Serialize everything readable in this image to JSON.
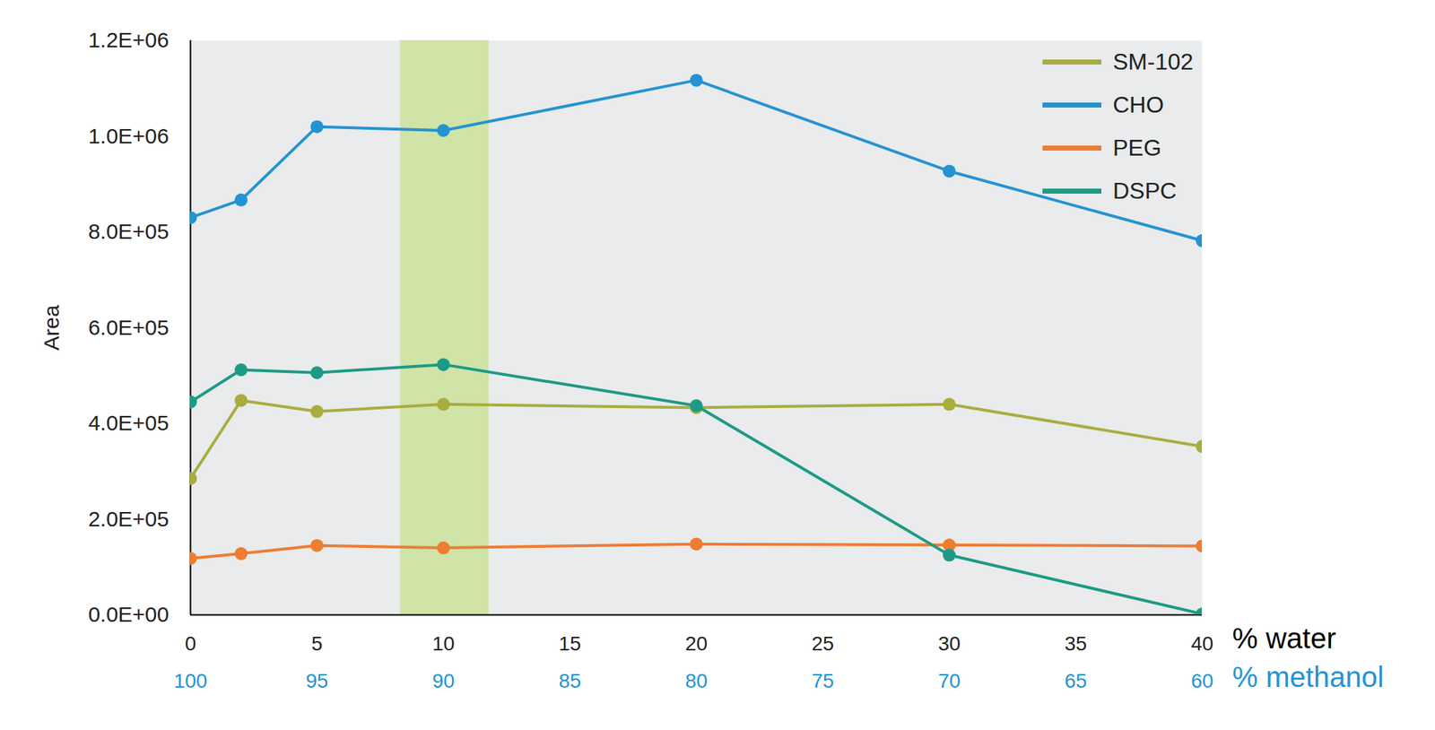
{
  "chart_data": {
    "type": "line",
    "x_label": "% water",
    "x2_label": "% methanol",
    "y_label": "Area",
    "x": [
      0,
      2,
      5,
      10,
      20,
      30,
      40
    ],
    "series": [
      {
        "name": "SM-102",
        "color": "#a9ad3f",
        "values": [
          285000,
          448000,
          425000,
          440000,
          433000,
          440000,
          352000
        ]
      },
      {
        "name": "CHO",
        "color": "#2593d2",
        "values": [
          830000,
          867000,
          1020000,
          1012000,
          1117000,
          927000,
          782000
        ]
      },
      {
        "name": "PEG",
        "color": "#ee7d32",
        "values": [
          118000,
          128000,
          145000,
          140000,
          148000,
          146000,
          144000
        ]
      },
      {
        "name": "DSPC",
        "color": "#1d9a85",
        "values": [
          445000,
          512000,
          506000,
          523000,
          437000,
          125000,
          2000
        ]
      }
    ],
    "xlim": [
      0,
      40
    ],
    "xticks": [
      0,
      5,
      10,
      15,
      20,
      25,
      30,
      35,
      40
    ],
    "x2ticks": [
      {
        "value": 0,
        "label": "100"
      },
      {
        "value": 5,
        "label": "95"
      },
      {
        "value": 10,
        "label": "90"
      },
      {
        "value": 15,
        "label": "85"
      },
      {
        "value": 20,
        "label": "80"
      },
      {
        "value": 25,
        "label": "75"
      },
      {
        "value": 30,
        "label": "70"
      },
      {
        "value": 35,
        "label": "65"
      },
      {
        "value": 40,
        "label": "60"
      }
    ],
    "ylim": [
      0,
      1200000
    ],
    "yticks": [
      {
        "value": 0,
        "label": "0.0E+00"
      },
      {
        "value": 200000,
        "label": "2.0E+05"
      },
      {
        "value": 400000,
        "label": "4.0E+05"
      },
      {
        "value": 600000,
        "label": "6.0E+05"
      },
      {
        "value": 800000,
        "label": "8.0E+05"
      },
      {
        "value": 1000000,
        "label": "1.0E+06"
      },
      {
        "value": 1200000,
        "label": "1.2E+06"
      }
    ],
    "highlight_x": [
      8.3,
      11.8
    ],
    "marker": "circle",
    "legend": "top-right"
  }
}
